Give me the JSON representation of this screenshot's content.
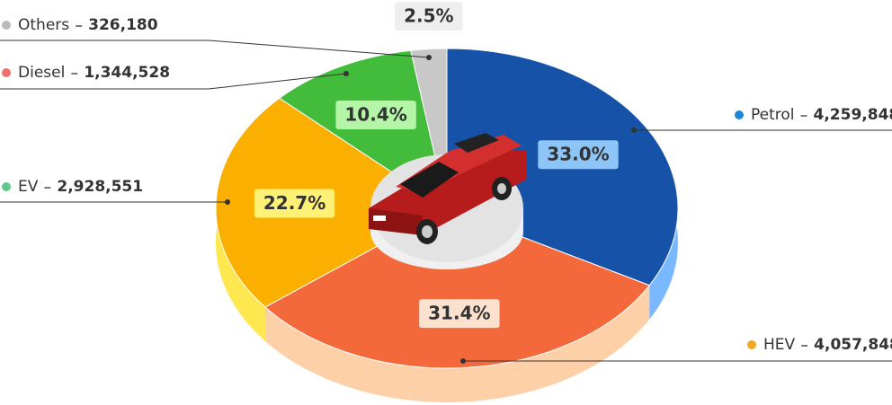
{
  "chart_data": {
    "type": "pie",
    "categories": [
      "Petrol",
      "HEV",
      "EV",
      "Diesel",
      "Others"
    ],
    "values": [
      33.0,
      31.4,
      22.7,
      10.4,
      2.5
    ],
    "value_labels": [
      "33.0%",
      "31.4%",
      "22.7%",
      "10.4%",
      "2.5%"
    ],
    "counts": [
      4259848,
      4057848,
      2928551,
      1344528,
      326180
    ],
    "count_labels": [
      "4,259,848",
      "4,057,848",
      "2,928,551",
      "1,344,528",
      "326,180"
    ],
    "colors": [
      "#1652a8",
      "#f4693b",
      "#fbb000",
      "#43bc3c",
      "#c8c8c8"
    ],
    "side_colors": [
      "#7ab8ff",
      "#fdd0a8",
      "#fde84f",
      "#8fdc7a",
      "#e0e0e0"
    ],
    "label_colors": [
      "#8ec5f7",
      "#fde1cf",
      "#fff176",
      "#b4f5a8",
      "#eeeeee"
    ],
    "legend_colors": [
      "#1e88d4",
      "#f5a623",
      "#5ec98a",
      "#f07070",
      "#bbbbbb"
    ]
  }
}
